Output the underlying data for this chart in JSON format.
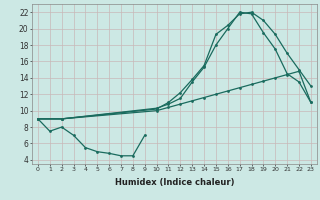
{
  "xlabel": "Humidex (Indice chaleur)",
  "background_color": "#cce8e4",
  "grid_color": "#c8b8b8",
  "line_color": "#1a6b5e",
  "xlim": [
    -0.5,
    23.5
  ],
  "ylim": [
    3.5,
    23
  ],
  "xticks": [
    0,
    1,
    2,
    3,
    4,
    5,
    6,
    7,
    8,
    9,
    10,
    11,
    12,
    13,
    14,
    15,
    16,
    17,
    18,
    19,
    20,
    21,
    22,
    23
  ],
  "yticks": [
    4,
    6,
    8,
    10,
    12,
    14,
    16,
    18,
    20,
    22
  ],
  "line_dip_x": [
    0,
    1,
    2,
    3,
    4,
    5,
    6,
    7,
    8,
    9
  ],
  "line_dip_y": [
    9,
    7.5,
    8,
    7,
    5.5,
    5,
    4.8,
    4.5,
    4.5,
    7
  ],
  "line_flat_x": [
    0,
    2,
    10,
    11,
    12,
    13,
    14,
    15,
    16,
    17,
    18,
    19,
    20,
    21,
    22,
    23
  ],
  "line_flat_y": [
    9,
    9,
    10,
    10.4,
    10.8,
    11.2,
    11.6,
    12,
    12.4,
    12.8,
    13.2,
    13.6,
    14,
    14.4,
    14.8,
    11
  ],
  "line_upper1_x": [
    0,
    2,
    10,
    11,
    12,
    13,
    14,
    15,
    16,
    17,
    18,
    19,
    20,
    21,
    22,
    23
  ],
  "line_upper1_y": [
    9,
    9,
    10.2,
    11,
    12.2,
    13.8,
    15.5,
    19.3,
    20.4,
    21.8,
    22,
    21,
    19.3,
    17,
    15,
    13
  ],
  "line_upper2_x": [
    0,
    2,
    10,
    11,
    12,
    13,
    14,
    15,
    16,
    17,
    18,
    19,
    20,
    21,
    22,
    23
  ],
  "line_upper2_y": [
    9,
    9,
    10.3,
    10.8,
    11.5,
    13.5,
    15.3,
    18,
    20,
    22,
    21.8,
    19.5,
    17.5,
    14.5,
    13.5,
    11
  ]
}
